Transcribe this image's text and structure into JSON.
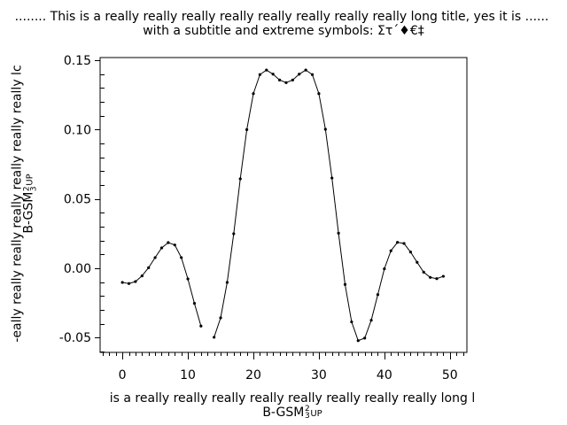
{
  "chart_data": {
    "type": "line",
    "title": "........ This is a really really really really really really really really long title, yes it is ......",
    "subtitle": "with a subtitle and extreme symbols: Στ΄♦€‡",
    "xlabel": "is a really really really really really really really really long l",
    "xlabel_line2": {
      "base": "B-GSM",
      "sup": "2",
      "sub": "3",
      "tail": "UP"
    },
    "ylabel": "-eally really really really really really really lc",
    "ylabel_line2": {
      "base": "B-GSM",
      "sup": "2",
      "sub": "3",
      "tail": "UP"
    },
    "xlim": [
      -3.4,
      52.6
    ],
    "ylim": [
      -0.0607,
      0.152
    ],
    "xticks": [
      "0",
      "10",
      "20",
      "30",
      "40",
      "50"
    ],
    "yticks": [
      "0.15",
      "0.10",
      "0.05",
      "0.00",
      "-0.05"
    ],
    "grid": false,
    "marker": "dot",
    "line_color": "#000000",
    "x": [
      0,
      1,
      2,
      3,
      4,
      5,
      6,
      7,
      8,
      9,
      10,
      11,
      12,
      13,
      14,
      15,
      16,
      17,
      18,
      19,
      20,
      21,
      22,
      23,
      24,
      25,
      26,
      27,
      28,
      29,
      30,
      31,
      32,
      33,
      34,
      35,
      36,
      37,
      38,
      39,
      40,
      41,
      42,
      43,
      44,
      45,
      46,
      47,
      48,
      49
    ],
    "y": [
      -0.0102,
      -0.011,
      -0.0096,
      -0.0055,
      0.0004,
      0.0077,
      0.0147,
      0.0185,
      0.0168,
      0.0077,
      -0.0077,
      -0.0253,
      -0.0417,
      null,
      -0.0498,
      -0.0358,
      -0.0102,
      0.0249,
      0.0645,
      0.1,
      0.126,
      0.1397,
      0.143,
      0.14,
      0.1358,
      0.1339,
      0.1358,
      0.14,
      0.143,
      0.1397,
      0.126,
      0.1003,
      0.0651,
      0.0253,
      -0.0117,
      -0.0387,
      -0.0522,
      -0.0504,
      -0.0375,
      -0.019,
      -0.0004,
      0.0126,
      0.0187,
      0.0179,
      0.0117,
      0.0043,
      -0.0028,
      -0.0066,
      -0.0075,
      -0.0058
    ]
  }
}
